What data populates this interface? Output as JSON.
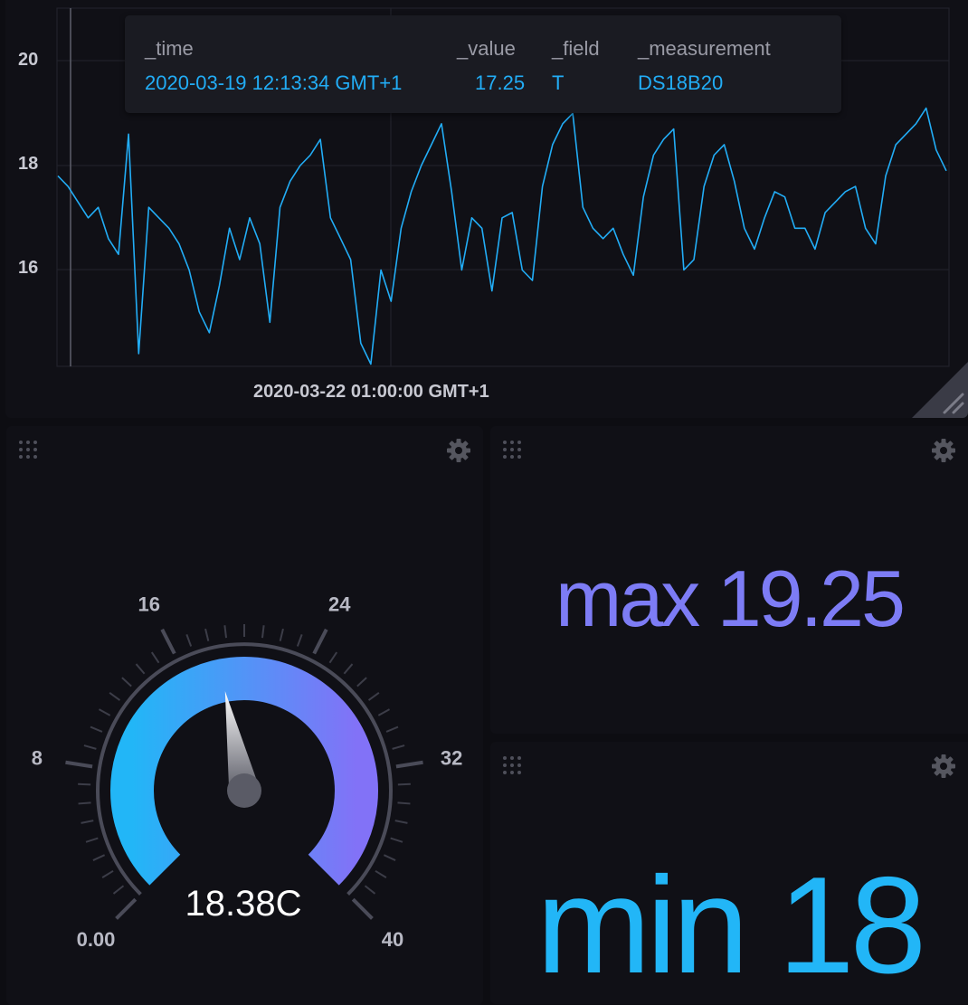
{
  "graph": {
    "y_ticks": [
      "20",
      "18",
      "16"
    ],
    "x_tick": "2020-03-22 01:00:00 GMT+1",
    "line_color": "#22adf6",
    "chart_data": {
      "type": "line",
      "series": [
        {
          "values": [
            17.8,
            17.6,
            17.3,
            17.0,
            17.2,
            16.6,
            16.3,
            18.6,
            14.4,
            17.2,
            17.0,
            16.8,
            16.5,
            16.0,
            15.2,
            14.8,
            15.7,
            16.8,
            16.2,
            17.0,
            16.5,
            15.0,
            17.2,
            17.7,
            18.0,
            18.2,
            18.5,
            17.0,
            16.6,
            16.2,
            14.6,
            14.2,
            16.0,
            15.4,
            16.8,
            17.5,
            18.0,
            18.4,
            18.8,
            17.5,
            16.0,
            17.0,
            16.8,
            15.6,
            17.0,
            17.1,
            16.0,
            15.8,
            17.6,
            18.4,
            18.8,
            19.0,
            17.2,
            16.8,
            16.6,
            16.8,
            16.3,
            15.9,
            17.4,
            18.2,
            18.5,
            18.7,
            16.0,
            16.2,
            17.6,
            18.2,
            18.4,
            17.7,
            16.8,
            16.4,
            17.0,
            17.5,
            17.4,
            16.8,
            16.8,
            16.4,
            17.1,
            17.3,
            17.5,
            17.6,
            16.8,
            16.5,
            17.8,
            18.4,
            18.6,
            18.8,
            19.1,
            18.3,
            17.9
          ]
        }
      ]
    }
  },
  "tooltip": {
    "headers": [
      "_time",
      "_value",
      "_field",
      "_measurement"
    ],
    "row": [
      "2020-03-19 12:13:34 GMT+1",
      "17.25",
      "T",
      "DS18B20"
    ]
  },
  "gauge": {
    "value": 18.38,
    "value_label": "18.38C",
    "min": 0,
    "max": 40,
    "tick_labels": [
      "0.00",
      "8",
      "16",
      "24",
      "32",
      "40"
    ],
    "color_start": "#22b6f7",
    "color_end": "#8272f7"
  },
  "max_stat": {
    "text": "max 19.25",
    "color": "#7d7cf5"
  },
  "min_stat": {
    "text": "min 18",
    "color": "#22b6f7"
  },
  "icons": {
    "drag": "drag-handle-icon",
    "settings": "gear-icon",
    "resize": "resize-handle-icon"
  }
}
